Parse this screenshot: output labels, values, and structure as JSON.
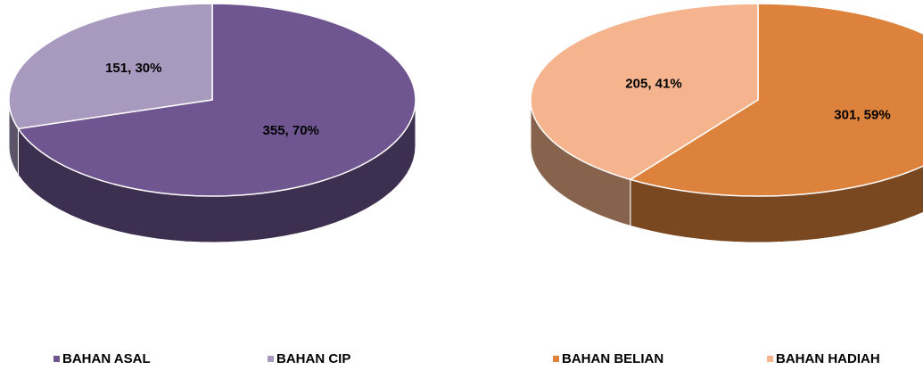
{
  "chart_data": [
    {
      "type": "pie",
      "categories": [
        "BAHAN ASAL",
        "BAHAN CIP"
      ],
      "values": [
        355,
        151
      ],
      "value_labels": [
        "355, 70%",
        "151, 30%"
      ],
      "colors": [
        "#6f5690",
        "#a899bf"
      ]
    },
    {
      "type": "pie",
      "categories": [
        "BAHAN BELIAN",
        "BAHAN HADIAH"
      ],
      "values": [
        301,
        205
      ],
      "value_labels": [
        "301, 59%",
        "205, 41%"
      ],
      "colors": [
        "#dc823c",
        "#f5b48e"
      ]
    }
  ]
}
